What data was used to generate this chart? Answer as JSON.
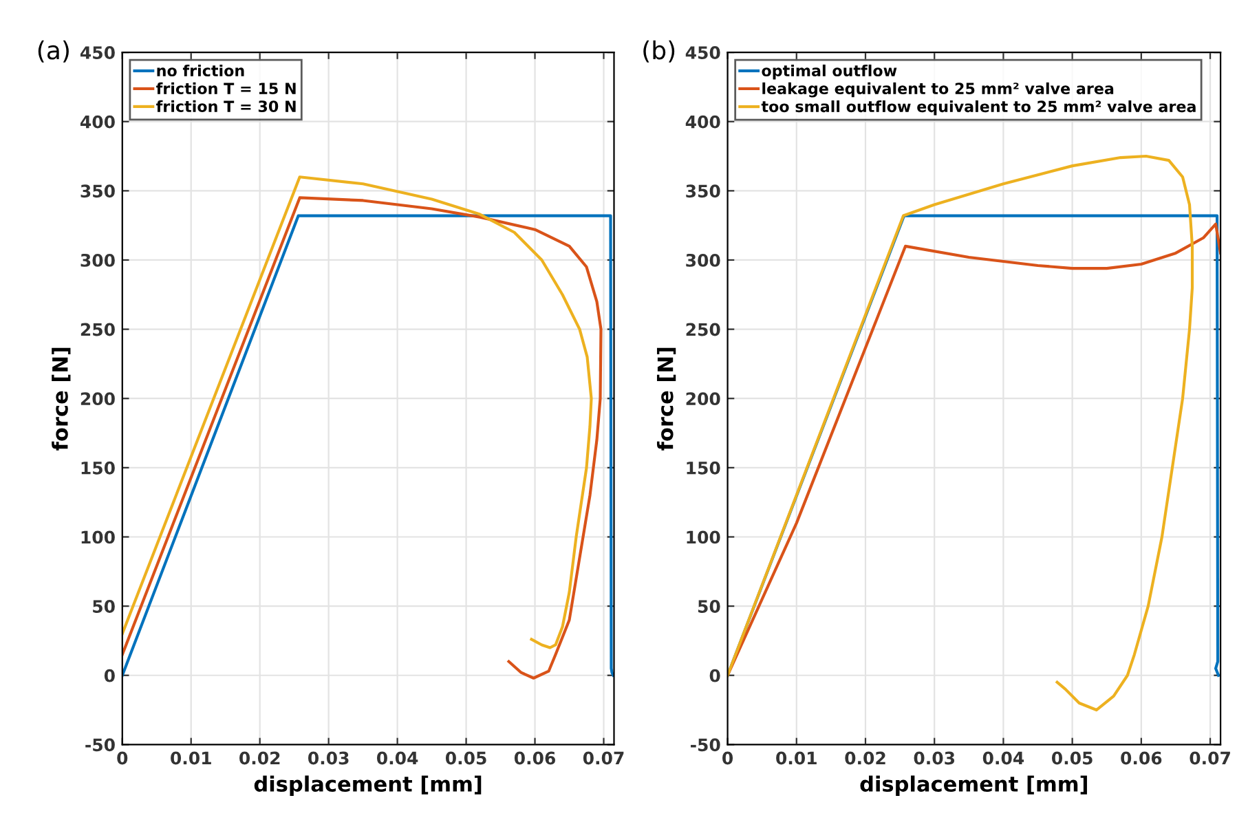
{
  "chart_data": [
    {
      "type": "line",
      "xlabel": "displacement [mm]",
      "ylabel": "force [N]",
      "annotations": [
        "(a)"
      ],
      "xlim": [
        0,
        0.0715
      ],
      "ylim": [
        -50,
        450
      ],
      "xticks": [
        0,
        0.01,
        0.02,
        0.03,
        0.04,
        0.05,
        0.06,
        0.07
      ],
      "yticks": [
        -50,
        0,
        50,
        100,
        150,
        200,
        250,
        300,
        350,
        400,
        450
      ],
      "grid": true,
      "legend": "top left",
      "series": [
        {
          "name": "no friction",
          "color": "#0072bd",
          "x": [
            0,
            0.0256,
            0.071,
            0.0711,
            0.0712,
            0.0714
          ],
          "values": [
            0,
            332,
            332,
            5,
            2,
            0
          ]
        },
        {
          "name": "friction T = 15 N",
          "color": "#d95319",
          "x": [
            0,
            0.0258,
            0.035,
            0.045,
            0.052,
            0.06,
            0.065,
            0.0675,
            0.069,
            0.0696,
            0.0695,
            0.069,
            0.068,
            0.066,
            0.065,
            0.063,
            0.062,
            0.0598,
            0.058,
            0.0562
          ],
          "values": [
            15,
            345,
            343,
            337,
            331,
            322,
            310,
            295,
            270,
            250,
            200,
            170,
            130,
            70,
            40,
            15,
            3,
            -2,
            2,
            10
          ]
        },
        {
          "name": "friction T = 30 N",
          "color": "#edb120",
          "x": [
            0,
            0.0258,
            0.035,
            0.045,
            0.052,
            0.057,
            0.061,
            0.064,
            0.0665,
            0.0676,
            0.0682,
            0.068,
            0.0675,
            0.066,
            0.065,
            0.064,
            0.063,
            0.0622,
            0.061,
            0.0595
          ],
          "values": [
            30,
            360,
            355,
            344,
            333,
            320,
            300,
            275,
            250,
            230,
            200,
            180,
            150,
            100,
            60,
            35,
            22,
            20,
            22,
            26
          ]
        }
      ]
    },
    {
      "type": "line",
      "xlabel": "displacement [mm]",
      "ylabel": "force [N]",
      "annotations": [
        "(b)"
      ],
      "xlim": [
        0,
        0.0715
      ],
      "ylim": [
        -50,
        450
      ],
      "xticks": [
        0,
        0.01,
        0.02,
        0.03,
        0.04,
        0.05,
        0.06,
        0.07
      ],
      "yticks": [
        -50,
        0,
        50,
        100,
        150,
        200,
        250,
        300,
        350,
        400,
        450
      ],
      "grid": true,
      "legend": "top left",
      "series": [
        {
          "name": "optimal outflow",
          "color": "#0072bd",
          "x": [
            0,
            0.0256,
            0.071,
            0.0711,
            0.0708,
            0.0712
          ],
          "values": [
            0,
            332,
            332,
            10,
            5,
            0
          ]
        },
        {
          "name": "leakage equivalent to 25 mm² valve area",
          "color": "#d95319",
          "x": [
            0,
            0.01,
            0.0258,
            0.035,
            0.045,
            0.05,
            0.055,
            0.06,
            0.065,
            0.069,
            0.0708,
            0.0715
          ],
          "values": [
            0,
            110,
            310,
            302,
            296,
            294,
            294,
            297,
            305,
            316,
            326,
            305
          ]
        },
        {
          "name": "too small outflow equivalent to 25 mm² valve area",
          "color": "#edb120",
          "x": [
            0,
            0.0255,
            0.03,
            0.04,
            0.05,
            0.057,
            0.0607,
            0.064,
            0.066,
            0.067,
            0.0674,
            0.0674,
            0.067,
            0.066,
            0.0645,
            0.063,
            0.061,
            0.059,
            0.058,
            0.056,
            0.0535,
            0.051,
            0.049,
            0.0478
          ],
          "values": [
            0,
            332,
            340,
            355,
            368,
            374,
            375,
            372,
            360,
            340,
            310,
            280,
            250,
            200,
            150,
            100,
            50,
            15,
            0,
            -15,
            -25,
            -20,
            -10,
            -5
          ]
        }
      ]
    }
  ]
}
